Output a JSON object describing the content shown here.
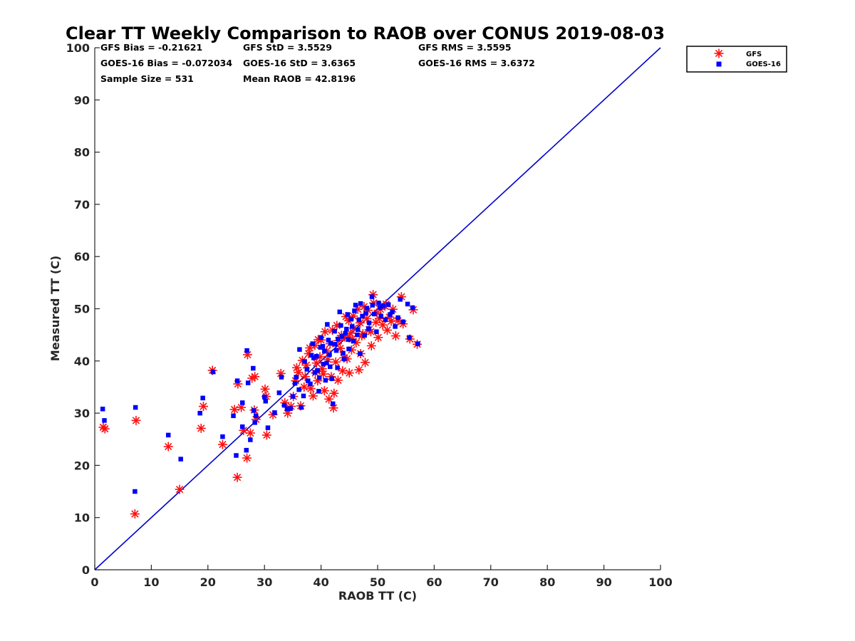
{
  "chart_data": {
    "type": "scatter",
    "title": "Clear TT Weekly Comparison to RAOB over CONUS 2019-08-03",
    "xlabel": "RAOB TT (C)",
    "ylabel": "Measured TT (C)",
    "xlim": [
      0,
      100
    ],
    "ylim": [
      0,
      100
    ],
    "xticks": [
      "0",
      "10",
      "20",
      "30",
      "40",
      "50",
      "60",
      "70",
      "80",
      "90",
      "100"
    ],
    "yticks": [
      "0",
      "10",
      "20",
      "30",
      "40",
      "50",
      "60",
      "70",
      "80",
      "90",
      "100"
    ],
    "grid": false,
    "legend_position": "top-right",
    "reference_line": {
      "name": "1:1 line",
      "color": "#0000cc",
      "x": [
        0,
        100
      ],
      "y": [
        0,
        100
      ]
    },
    "stats": {
      "gfs_bias": "GFS Bias = -0.21621",
      "gfs_std": "GFS StD = 3.5529",
      "gfs_rms": "GFS RMS = 3.5595",
      "goes_bias": "GOES-16 Bias = -0.072034",
      "goes_std": "GOES-16 StD = 3.6365",
      "goes_rms": "GOES-16 RMS = 3.6372",
      "sample_size": "Sample Size = 531",
      "mean_raob": "Mean RAOB = 42.8196"
    },
    "series": [
      {
        "name": "GFS",
        "marker": "asterisk",
        "color": "#ff1010",
        "points": [
          [
            1.5,
            27.3
          ],
          [
            1.8,
            27.0
          ],
          [
            7.3,
            28.6
          ],
          [
            7.1,
            10.7
          ],
          [
            13.0,
            23.6
          ],
          [
            15.0,
            15.4
          ],
          [
            18.8,
            27.1
          ],
          [
            19.2,
            31.3
          ],
          [
            20.8,
            38.2
          ],
          [
            22.6,
            24.0
          ],
          [
            24.7,
            30.7
          ],
          [
            25.2,
            17.7
          ],
          [
            25.3,
            35.6
          ],
          [
            25.9,
            31.1
          ],
          [
            26.3,
            26.7
          ],
          [
            26.9,
            21.4
          ],
          [
            27.0,
            41.2
          ],
          [
            27.5,
            26.2
          ],
          [
            27.8,
            36.7
          ],
          [
            28.2,
            30.6
          ],
          [
            28.3,
            37.0
          ],
          [
            28.5,
            28.8
          ],
          [
            30.1,
            34.6
          ],
          [
            30.3,
            33.2
          ],
          [
            30.4,
            25.8
          ],
          [
            31.5,
            29.7
          ],
          [
            32.9,
            37.6
          ],
          [
            33.6,
            32.0
          ],
          [
            34.1,
            30.0
          ],
          [
            34.7,
            31.3
          ],
          [
            35.1,
            33.2
          ],
          [
            35.5,
            36.2
          ],
          [
            36.0,
            37.8
          ],
          [
            36.4,
            31.4
          ],
          [
            37.0,
            35.0
          ],
          [
            37.4,
            39.2
          ],
          [
            38.2,
            34.7
          ],
          [
            38.6,
            33.3
          ],
          [
            39.0,
            37.7
          ],
          [
            39.4,
            36.2
          ],
          [
            39.8,
            40.8
          ],
          [
            40.2,
            38.5
          ],
          [
            40.6,
            34.3
          ],
          [
            41.0,
            41.9
          ],
          [
            41.4,
            32.7
          ],
          [
            41.8,
            37.0
          ],
          [
            42.2,
            31.0
          ],
          [
            42.3,
            33.8
          ],
          [
            42.6,
            39.8
          ],
          [
            43.0,
            36.3
          ],
          [
            43.4,
            42.4
          ],
          [
            43.8,
            38.1
          ],
          [
            44.2,
            44.6
          ],
          [
            44.6,
            40.4
          ],
          [
            45.0,
            37.7
          ],
          [
            45.4,
            42.1
          ],
          [
            45.8,
            46.3
          ],
          [
            46.2,
            43.5
          ],
          [
            46.7,
            38.3
          ],
          [
            47.0,
            41.4
          ],
          [
            47.4,
            45.2
          ],
          [
            47.8,
            39.7
          ],
          [
            48.1,
            48.1
          ],
          [
            48.5,
            46.0
          ],
          [
            48.9,
            42.9
          ],
          [
            49.3,
            51.1
          ],
          [
            49.2,
            52.7
          ],
          [
            49.7,
            47.4
          ],
          [
            50.1,
            44.5
          ],
          [
            50.5,
            49.9
          ],
          [
            50.9,
            46.9
          ],
          [
            51.3,
            50.5
          ],
          [
            51.7,
            45.9
          ],
          [
            52.1,
            48.4
          ],
          [
            52.7,
            49.9
          ],
          [
            53.2,
            44.8
          ],
          [
            53.6,
            47.7
          ],
          [
            54.2,
            52.3
          ],
          [
            54.5,
            47.1
          ],
          [
            55.7,
            44.2
          ],
          [
            56.3,
            49.8
          ],
          [
            57.0,
            43.2
          ],
          [
            38.0,
            42.5
          ],
          [
            39.5,
            44.1
          ],
          [
            40.7,
            45.6
          ],
          [
            41.6,
            43.3
          ],
          [
            42.8,
            46.8
          ],
          [
            43.6,
            44.9
          ],
          [
            44.9,
            47.7
          ],
          [
            45.7,
            48.6
          ],
          [
            46.5,
            49.9
          ],
          [
            47.6,
            50.4
          ],
          [
            36.7,
            40.1
          ],
          [
            37.8,
            41.4
          ],
          [
            38.9,
            43.0
          ],
          [
            40.0,
            44.0
          ],
          [
            42.0,
            45.9
          ],
          [
            44.4,
            48.5
          ],
          [
            45.2,
            45.3
          ],
          [
            46.9,
            47.3
          ],
          [
            48.3,
            49.7
          ],
          [
            49.9,
            49.2
          ],
          [
            51.5,
            50.9
          ],
          [
            52.4,
            47.6
          ],
          [
            44.0,
            40.6
          ],
          [
            41.2,
            40.3
          ],
          [
            39.2,
            39.6
          ],
          [
            43.1,
            43.9
          ],
          [
            45.5,
            44.2
          ],
          [
            47.2,
            44.8
          ],
          [
            48.8,
            45.6
          ],
          [
            50.3,
            48.1
          ],
          [
            35.7,
            38.7
          ],
          [
            37.2,
            37.0
          ],
          [
            40.4,
            37.5
          ]
        ]
      },
      {
        "name": "GOES-16",
        "marker": "square",
        "color": "#0000ff",
        "points": [
          [
            1.4,
            30.8
          ],
          [
            1.7,
            28.6
          ],
          [
            7.2,
            31.1
          ],
          [
            7.1,
            15.0
          ],
          [
            13.0,
            25.8
          ],
          [
            15.2,
            21.2
          ],
          [
            18.6,
            30.0
          ],
          [
            19.1,
            32.9
          ],
          [
            20.9,
            37.9
          ],
          [
            22.6,
            25.5
          ],
          [
            24.5,
            29.5
          ],
          [
            25.0,
            21.9
          ],
          [
            25.2,
            36.2
          ],
          [
            26.1,
            32.0
          ],
          [
            26.1,
            27.4
          ],
          [
            26.8,
            22.9
          ],
          [
            26.9,
            42.0
          ],
          [
            27.1,
            35.8
          ],
          [
            27.5,
            24.9
          ],
          [
            28.0,
            38.6
          ],
          [
            28.1,
            30.5
          ],
          [
            28.5,
            29.5
          ],
          [
            28.3,
            28.2
          ],
          [
            30.0,
            33.1
          ],
          [
            30.2,
            32.3
          ],
          [
            30.6,
            27.2
          ],
          [
            31.8,
            30.1
          ],
          [
            32.6,
            33.9
          ],
          [
            33.0,
            36.9
          ],
          [
            33.5,
            31.5
          ],
          [
            34.0,
            30.8
          ],
          [
            34.6,
            30.9
          ],
          [
            35.0,
            33.2
          ],
          [
            35.6,
            36.9
          ],
          [
            36.1,
            34.5
          ],
          [
            36.2,
            42.2
          ],
          [
            36.5,
            31.1
          ],
          [
            36.9,
            33.3
          ],
          [
            37.5,
            38.4
          ],
          [
            38.1,
            35.6
          ],
          [
            38.5,
            43.3
          ],
          [
            38.9,
            37.8
          ],
          [
            39.2,
            40.9
          ],
          [
            39.6,
            34.2
          ],
          [
            40.0,
            44.5
          ],
          [
            40.4,
            39.4
          ],
          [
            40.8,
            36.3
          ],
          [
            41.1,
            47.0
          ],
          [
            41.5,
            41.2
          ],
          [
            41.9,
            36.6
          ],
          [
            42.1,
            31.8
          ],
          [
            42.5,
            43.2
          ],
          [
            42.9,
            38.7
          ],
          [
            43.3,
            49.4
          ],
          [
            43.7,
            44.7
          ],
          [
            44.1,
            40.4
          ],
          [
            44.5,
            46.1
          ],
          [
            44.9,
            42.3
          ],
          [
            45.3,
            48.0
          ],
          [
            45.7,
            43.8
          ],
          [
            46.1,
            50.7
          ],
          [
            46.5,
            46.0
          ],
          [
            46.9,
            41.4
          ],
          [
            47.3,
            48.6
          ],
          [
            47.7,
            44.9
          ],
          [
            48.1,
            50.1
          ],
          [
            48.5,
            47.3
          ],
          [
            49.0,
            52.3
          ],
          [
            49.4,
            49.0
          ],
          [
            49.8,
            45.6
          ],
          [
            50.2,
            51.1
          ],
          [
            50.6,
            48.6
          ],
          [
            51.0,
            50.5
          ],
          [
            51.4,
            47.9
          ],
          [
            51.9,
            50.8
          ],
          [
            52.6,
            49.4
          ],
          [
            53.1,
            46.6
          ],
          [
            53.6,
            48.3
          ],
          [
            54.0,
            51.8
          ],
          [
            54.5,
            47.5
          ],
          [
            55.3,
            50.9
          ],
          [
            55.6,
            44.5
          ],
          [
            56.2,
            50.2
          ],
          [
            57.1,
            43.3
          ],
          [
            38.3,
            41.1
          ],
          [
            39.9,
            42.6
          ],
          [
            41.3,
            44.0
          ],
          [
            42.4,
            45.7
          ],
          [
            43.5,
            46.8
          ],
          [
            44.7,
            48.9
          ],
          [
            45.9,
            49.6
          ],
          [
            47.0,
            51.0
          ],
          [
            37.1,
            39.9
          ],
          [
            38.7,
            40.6
          ],
          [
            40.3,
            42.8
          ],
          [
            41.7,
            43.4
          ],
          [
            43.0,
            44.2
          ],
          [
            44.3,
            45.3
          ],
          [
            45.5,
            46.6
          ],
          [
            46.7,
            47.9
          ],
          [
            47.9,
            49.1
          ],
          [
            49.1,
            50.7
          ],
          [
            50.4,
            50.2
          ],
          [
            52.2,
            48.9
          ],
          [
            40.6,
            41.9
          ],
          [
            42.7,
            42.0
          ],
          [
            44.8,
            44.1
          ],
          [
            46.4,
            45.0
          ],
          [
            48.4,
            46.2
          ],
          [
            39.4,
            38.2
          ],
          [
            41.0,
            39.6
          ],
          [
            43.9,
            41.5
          ],
          [
            35.4,
            35.7
          ],
          [
            37.7,
            36.2
          ],
          [
            39.7,
            36.8
          ],
          [
            41.6,
            38.9
          ]
        ]
      }
    ]
  }
}
